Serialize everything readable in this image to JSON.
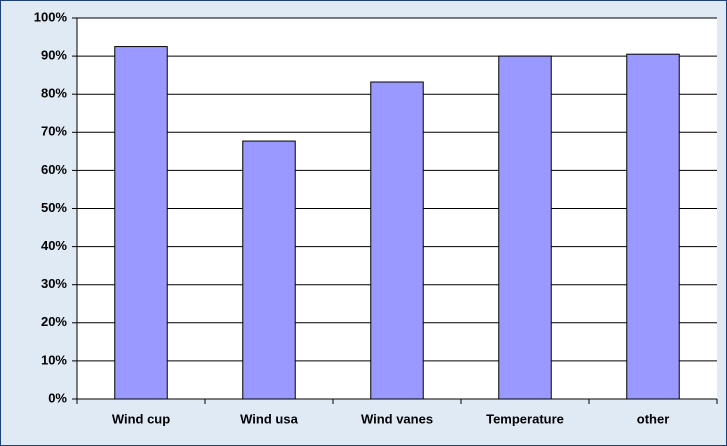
{
  "chart_data": {
    "type": "bar",
    "categories": [
      "Wind cup",
      "Wind usa",
      "Wind vanes",
      "Temperature",
      "other"
    ],
    "values": [
      92.5,
      67.7,
      83.2,
      90,
      90.5
    ],
    "color": "#9999ff",
    "ylim": [
      0,
      100
    ],
    "yticks": [
      {
        "value": 0,
        "label": "0%"
      },
      {
        "value": 10,
        "label": "10%"
      },
      {
        "value": 20,
        "label": "20%"
      },
      {
        "value": 30,
        "label": "30%"
      },
      {
        "value": 40,
        "label": "40%"
      },
      {
        "value": 50,
        "label": "50%"
      },
      {
        "value": 60,
        "label": "60%"
      },
      {
        "value": 70,
        "label": "70%"
      },
      {
        "value": 80,
        "label": "80%"
      },
      {
        "value": 90,
        "label": "90%"
      },
      {
        "value": 100,
        "label": "100%"
      }
    ],
    "grid": true
  }
}
